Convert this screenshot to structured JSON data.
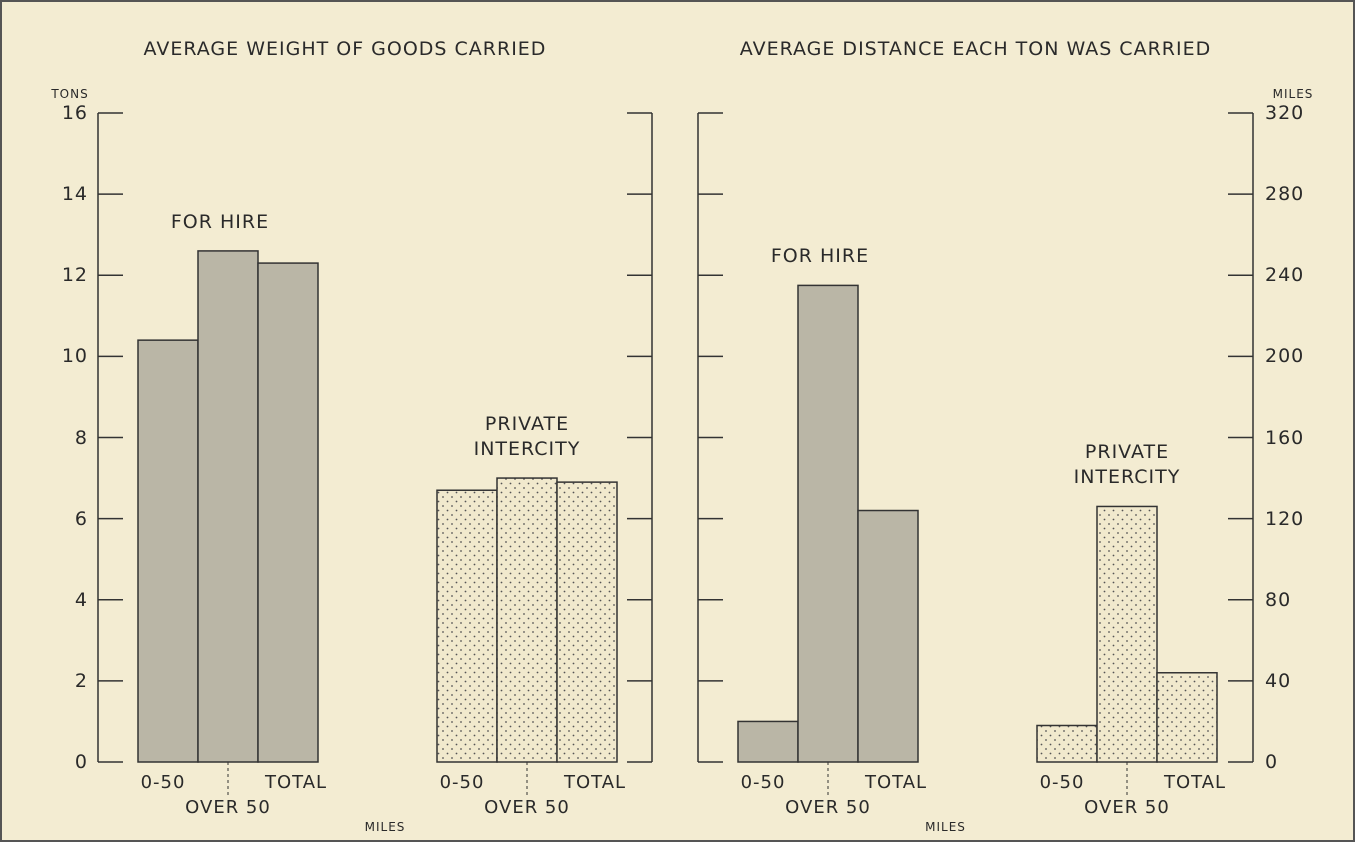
{
  "chart_data": [
    {
      "type": "bar",
      "title": "AVERAGE WEIGHT OF GOODS CARRIED",
      "y_label": "TONS",
      "x_label": "MILES",
      "categories": [
        "0-50",
        "OVER 50",
        "TOTAL"
      ],
      "series": [
        {
          "name": "FOR HIRE",
          "color": "#bab6a6",
          "pattern": "solid",
          "values": [
            10.4,
            12.6,
            12.3
          ]
        },
        {
          "name": "PRIVATE INTERCITY",
          "color": "#f1e9cd",
          "pattern": "dots",
          "values": [
            6.7,
            7.0,
            6.9
          ]
        }
      ],
      "ylim": [
        0,
        16
      ],
      "yticks": [
        0,
        2,
        4,
        6,
        8,
        10,
        12,
        14,
        16
      ],
      "y_axis_side": "left"
    },
    {
      "type": "bar",
      "title": "AVERAGE DISTANCE EACH TON WAS CARRIED",
      "y_label": "MILES",
      "x_label": "MILES",
      "categories": [
        "0-50",
        "OVER 50",
        "TOTAL"
      ],
      "series": [
        {
          "name": "FOR HIRE",
          "color": "#bab6a6",
          "pattern": "solid",
          "values": [
            20,
            235,
            124
          ]
        },
        {
          "name": "PRIVATE INTERCITY",
          "color": "#f1e9cd",
          "pattern": "dots",
          "values": [
            18,
            126,
            44
          ]
        }
      ],
      "ylim": [
        0,
        320
      ],
      "yticks": [
        0,
        40,
        80,
        120,
        160,
        200,
        240,
        280,
        320
      ],
      "y_axis_side": "right"
    }
  ]
}
